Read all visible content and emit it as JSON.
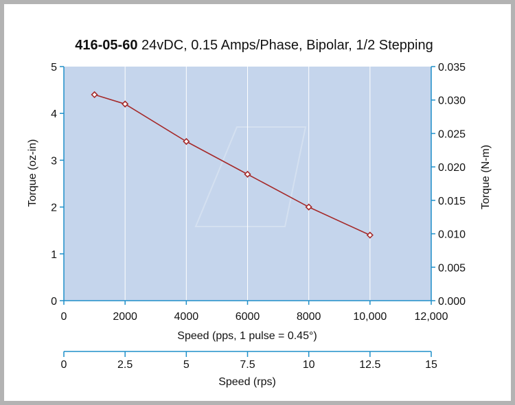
{
  "chart_data": {
    "type": "line",
    "title_bold": "416-05-60",
    "title_rest": " 24vDC, 0.15 Amps/Phase, Bipolar, 1/2 Stepping",
    "xlabel": "Speed (pps, 1 pulse = 0.45°)",
    "ylabel": "Torque (oz-in)",
    "ylabel_right": "Torque (N-m)",
    "xlabel_secondary": "Speed (rps)",
    "xlim": [
      0,
      12000
    ],
    "ylim": [
      0,
      5
    ],
    "ylim_right": [
      0,
      0.035
    ],
    "xlim_secondary": [
      0,
      15
    ],
    "x_ticks": [
      {
        "value": 0,
        "label": "0"
      },
      {
        "value": 2000,
        "label": "2000"
      },
      {
        "value": 4000,
        "label": "4000"
      },
      {
        "value": 6000,
        "label": "6000"
      },
      {
        "value": 8000,
        "label": "8000"
      },
      {
        "value": 10000,
        "label": "10,000"
      },
      {
        "value": 12000,
        "label": "12,000"
      }
    ],
    "y_ticks": [
      {
        "value": 0,
        "label": "0"
      },
      {
        "value": 1,
        "label": "1"
      },
      {
        "value": 2,
        "label": "2"
      },
      {
        "value": 3,
        "label": "3"
      },
      {
        "value": 4,
        "label": "4"
      },
      {
        "value": 5,
        "label": "5"
      }
    ],
    "y_ticks_right": [
      {
        "value": 0,
        "label": "0.000"
      },
      {
        "value": 0.005,
        "label": "0.005"
      },
      {
        "value": 0.01,
        "label": "0.010"
      },
      {
        "value": 0.015,
        "label": "0.015"
      },
      {
        "value": 0.02,
        "label": "0.020"
      },
      {
        "value": 0.025,
        "label": "0.025"
      },
      {
        "value": 0.03,
        "label": "0.030"
      },
      {
        "value": 0.035,
        "label": "0.035"
      }
    ],
    "x_ticks_secondary": [
      {
        "value": 0,
        "label": "0"
      },
      {
        "value": 2.5,
        "label": "2.5"
      },
      {
        "value": 5,
        "label": "5"
      },
      {
        "value": 7.5,
        "label": "7.5"
      },
      {
        "value": 10,
        "label": "10"
      },
      {
        "value": 12.5,
        "label": "12.5"
      },
      {
        "value": 15,
        "label": "15"
      }
    ],
    "grid": true,
    "series": [
      {
        "x": [
          1000,
          2000,
          4000,
          6000,
          8000,
          10000
        ],
        "y": [
          4.4,
          4.2,
          3.4,
          2.7,
          2.0,
          1.4
        ]
      }
    ],
    "colors": {
      "plot_background": "#c5d5ec",
      "axis": "#1e8fc9",
      "gridline": "#ffffff",
      "line": "#a52a2a",
      "marker_fill": "#ffffff"
    }
  }
}
